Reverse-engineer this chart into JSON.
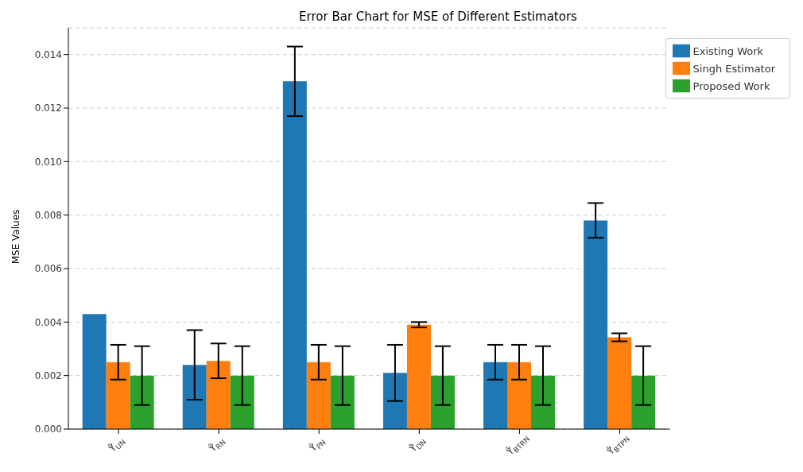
{
  "chart_data": {
    "type": "bar",
    "title": "Error Bar Chart for MSE of Different Estimators",
    "ylabel": "MSE Values",
    "categories": [
      "Ŷ̃$_{UN}$",
      "Ŷ̃$_{RN}$",
      "Ŷ̃$_{PN}$",
      "Ŷ̃$_{DN}$",
      "Ŷ̃$_{BTRN}$",
      "Ŷ̃$_{BTPN}$"
    ],
    "series": [
      {
        "name": "Existing Work",
        "color": "#1f77b4",
        "values": [
          0.0043,
          0.0024,
          0.013,
          0.0021,
          0.0025,
          0.0078
        ],
        "errors": [
          0,
          0.0013,
          0.0013,
          0.00105,
          0.00065,
          0.00065
        ]
      },
      {
        "name": "Singh Estimator",
        "color": "#ff7f0e",
        "values": [
          0.0025,
          0.00255,
          0.0025,
          0.0039,
          0.0025,
          0.00343
        ],
        "errors": [
          0.00065,
          0.00065,
          0.00065,
          0.0001,
          0.00065,
          0.00015
        ]
      },
      {
        "name": "Proposed Work",
        "color": "#2ca02c",
        "values": [
          0.002,
          0.002,
          0.002,
          0.002,
          0.002,
          0.002
        ],
        "errors": [
          0.0011,
          0.0011,
          0.0011,
          0.0011,
          0.0011,
          0.0011
        ]
      }
    ],
    "ylim": [
      0,
      0.015
    ],
    "yticks": [
      {
        "value": 0,
        "label": "0.000"
      },
      {
        "value": 0.002,
        "label": "0.002"
      },
      {
        "value": 0.004,
        "label": "0.004"
      },
      {
        "value": 0.006,
        "label": "0.006"
      },
      {
        "value": 0.008,
        "label": "0.008"
      },
      {
        "value": 0.01,
        "label": "0.010"
      },
      {
        "value": 0.012,
        "label": "0.012"
      },
      {
        "value": 0.014,
        "label": "0.014"
      }
    ],
    "grid": "y",
    "legend": "top right"
  }
}
